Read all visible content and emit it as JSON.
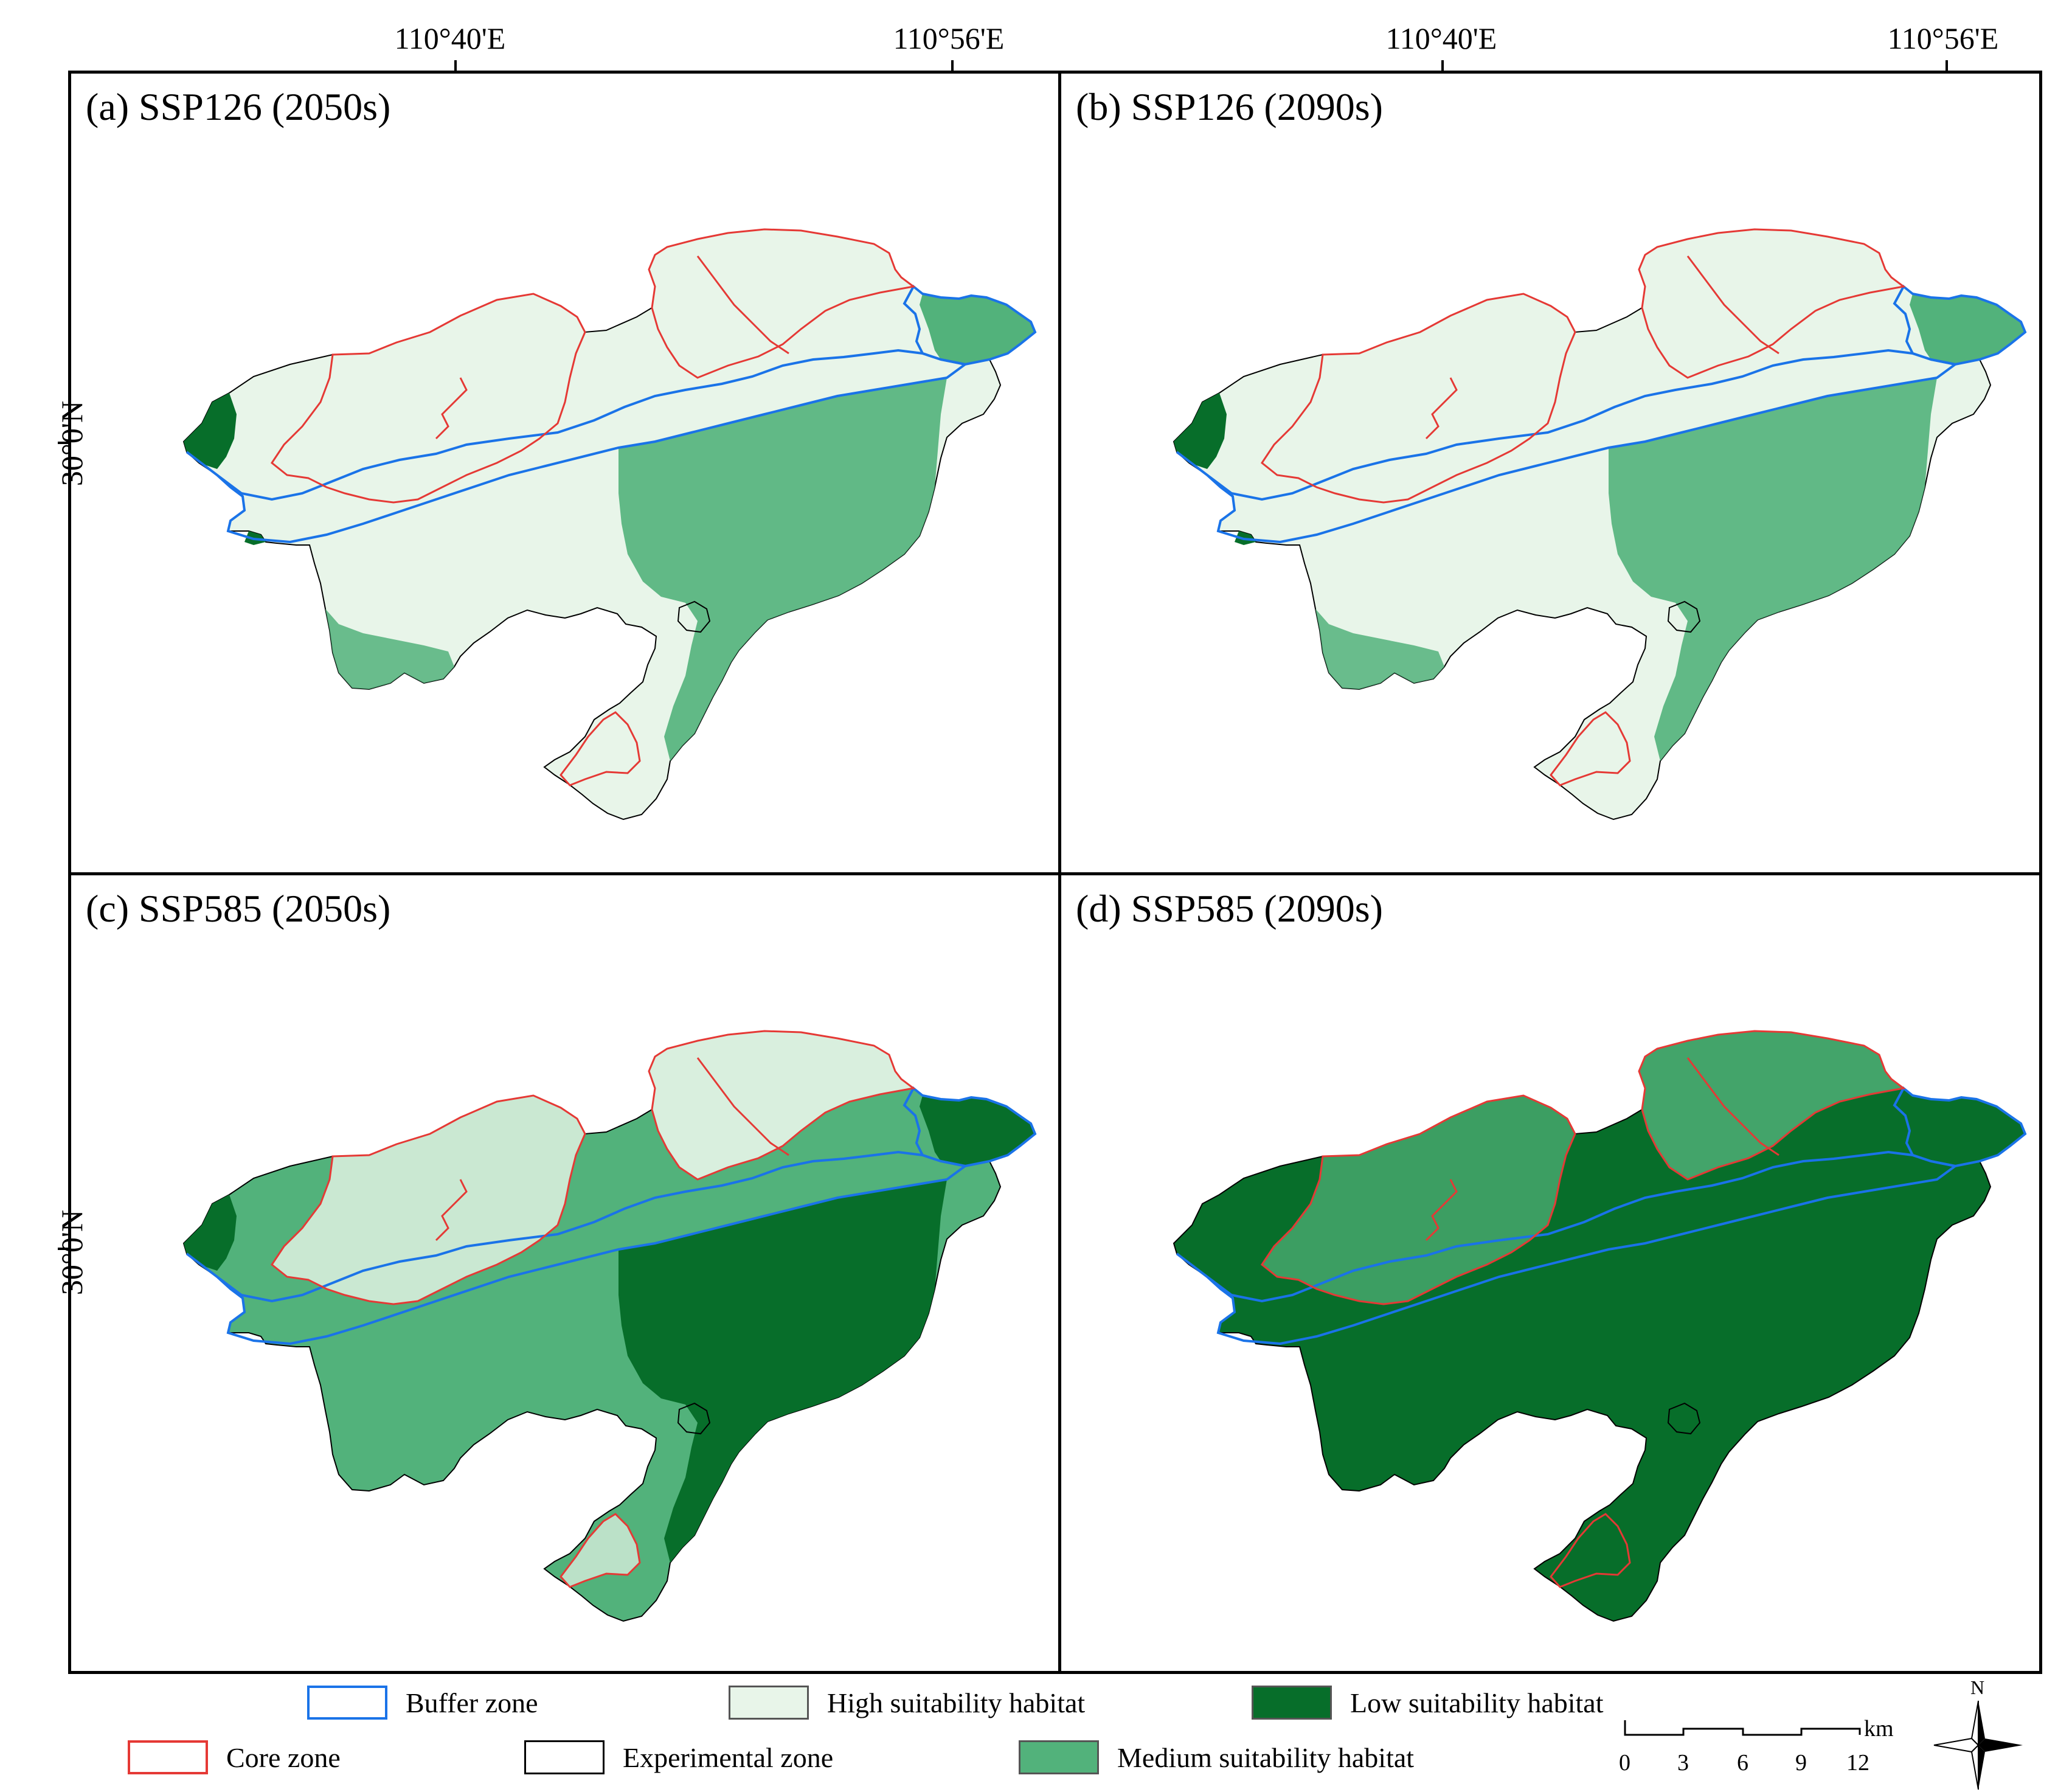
{
  "coordinates": {
    "top": [
      "110°40'E",
      "110°56'E",
      "110°40'E",
      "110°56'E"
    ],
    "left": [
      "30°0'N",
      "30°0'N"
    ]
  },
  "panels": [
    {
      "title": "(a) SSP126 (2050s)",
      "fill": "#e8f5e9",
      "medium": "#52b27b",
      "low": "#076e2a",
      "level": "high"
    },
    {
      "title": "(b) SSP126 (2090s)",
      "fill": "#e8f5e9",
      "medium": "#52b27b",
      "low": "#076e2a",
      "level": "high"
    },
    {
      "title": "(c) SSP585 (2050s)",
      "fill": "#52b27b",
      "medium": "#52b27b",
      "low": "#076e2a",
      "level": "medium"
    },
    {
      "title": "(d) SSP585 (2090s)",
      "fill": "#076e2a",
      "medium": "#52b27b",
      "low": "#076e2a",
      "level": "low"
    }
  ],
  "legend": {
    "buffer": {
      "label": "Buffer zone",
      "color": "#1a73e8"
    },
    "core": {
      "label": "Core zone",
      "color": "#e53935"
    },
    "high": {
      "label": "High suitability habitat",
      "color": "#e8f5e9"
    },
    "experimental": {
      "label": "Experimental zone",
      "color": "#000000"
    },
    "low": {
      "label": "Low suitability habitat",
      "color": "#076e2a"
    },
    "medium": {
      "label": "Medium suitability habitat",
      "color": "#52b27b"
    }
  },
  "scale": {
    "unit": "km",
    "ticks": [
      "0",
      "3",
      "6",
      "9",
      "12"
    ]
  },
  "compass": {
    "north_label": "N"
  }
}
